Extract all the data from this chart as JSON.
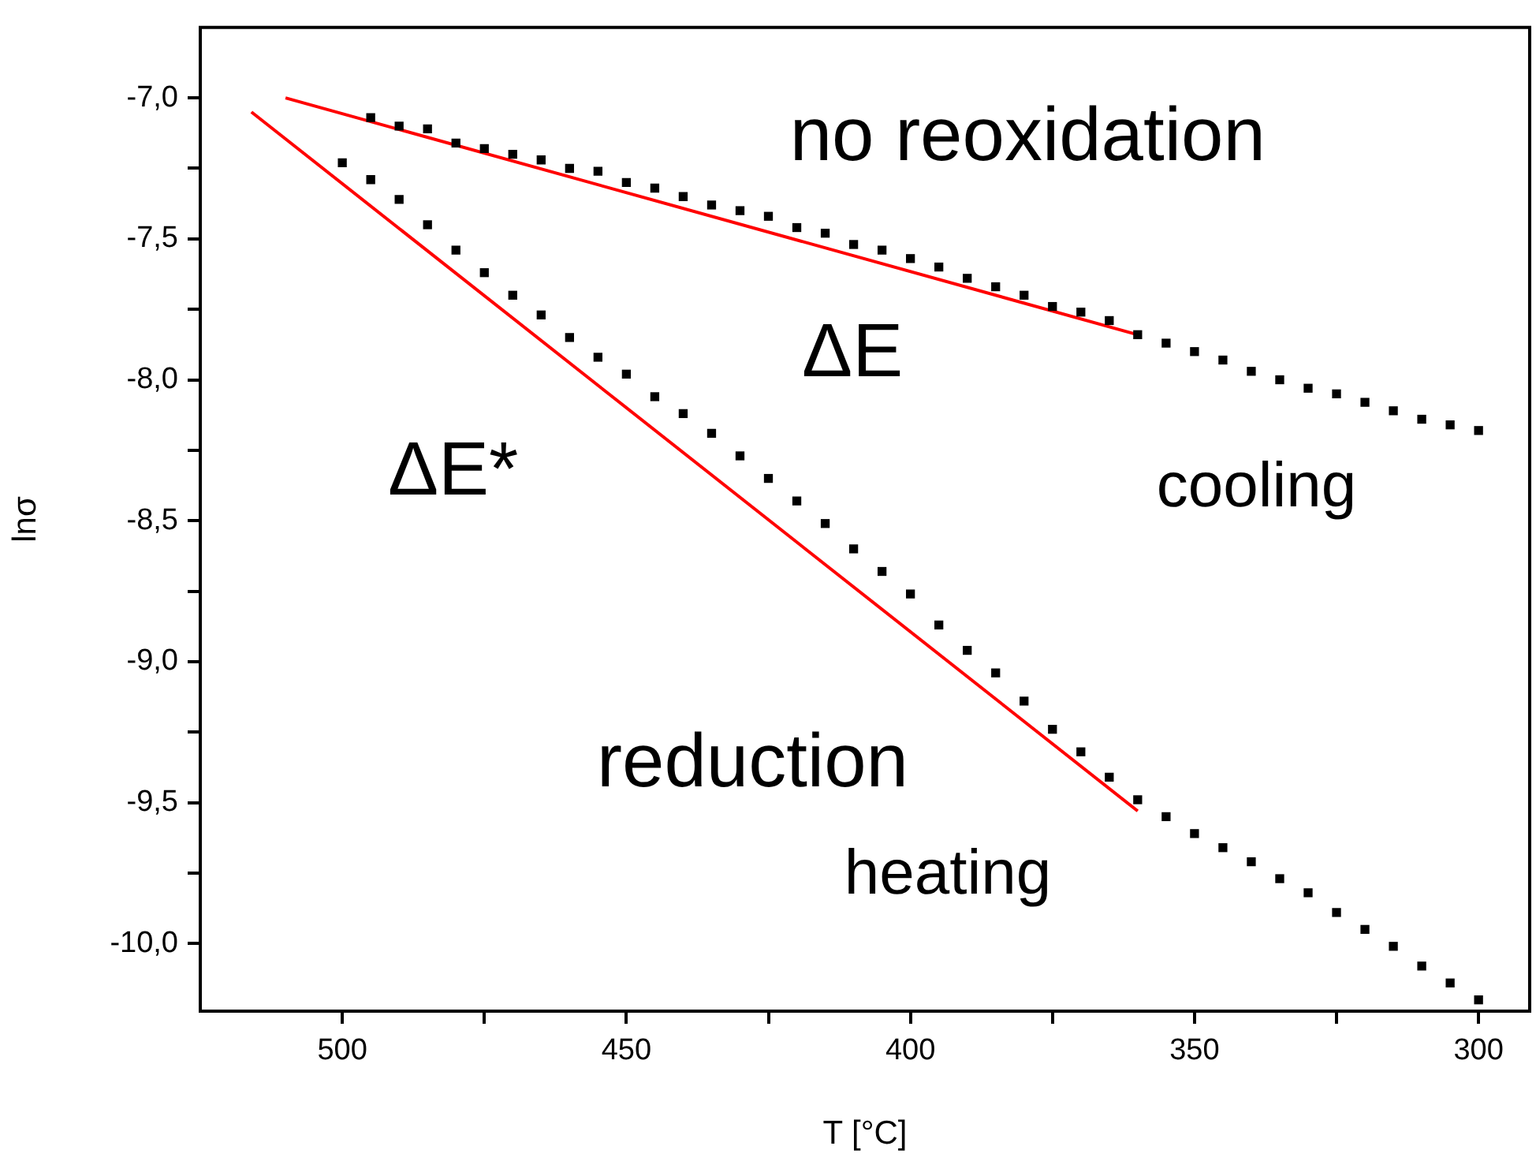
{
  "chart_data": {
    "type": "scatter",
    "xlabel": "T [°C]",
    "ylabel": "lnσ",
    "legend": false,
    "grid": false,
    "xlim": [
      525,
      291
    ],
    "ylim": [
      -10.24,
      -6.75
    ],
    "xticks": [
      500,
      {
        "value": 475,
        "label": null
      },
      450,
      {
        "value": 425,
        "label": null
      },
      400,
      {
        "value": 375,
        "label": null
      },
      350,
      {
        "value": 325,
        "label": null
      },
      300
    ],
    "yticks": [
      {
        "value": -7.0,
        "label": "-7,0"
      },
      {
        "value": -7.25,
        "label": null
      },
      {
        "value": -7.5,
        "label": "-7,5"
      },
      {
        "value": -7.75,
        "label": null
      },
      {
        "value": -8.0,
        "label": "-8,0"
      },
      {
        "value": -8.25,
        "label": null
      },
      {
        "value": -8.5,
        "label": "-8,5"
      },
      {
        "value": -8.75,
        "label": null
      },
      {
        "value": -9.0,
        "label": "-9,0"
      },
      {
        "value": -9.25,
        "label": null
      },
      {
        "value": -9.5,
        "label": "-9,5"
      },
      {
        "value": -9.75,
        "label": null
      },
      {
        "value": -10.0,
        "label": "-10,0"
      }
    ],
    "marker": "square",
    "series": [
      {
        "color": "#000000",
        "x": [
          495,
          490,
          485,
          480,
          475,
          470,
          465,
          460,
          455,
          450,
          445,
          440,
          435,
          430,
          425,
          420,
          415,
          410,
          405,
          400,
          395,
          390,
          385,
          380,
          375,
          370,
          365,
          360,
          355,
          350,
          345,
          340,
          335,
          330,
          325,
          320,
          315,
          310,
          305,
          300
        ],
        "values": [
          -7.07,
          -7.1,
          -7.11,
          -7.16,
          -7.18,
          -7.2,
          -7.22,
          -7.25,
          -7.26,
          -7.3,
          -7.32,
          -7.35,
          -7.38,
          -7.4,
          -7.42,
          -7.46,
          -7.48,
          -7.52,
          -7.54,
          -7.57,
          -7.6,
          -7.64,
          -7.67,
          -7.7,
          -7.74,
          -7.76,
          -7.79,
          -7.84,
          -7.87,
          -7.9,
          -7.93,
          -7.97,
          -8.0,
          -8.03,
          -8.05,
          -8.08,
          -8.11,
          -8.14,
          -8.16,
          -8.18
        ]
      },
      {
        "color": "#000000",
        "x": [
          500,
          495,
          490,
          485,
          480,
          475,
          470,
          465,
          460,
          455,
          450,
          445,
          440,
          435,
          430,
          425,
          420,
          415,
          410,
          405,
          400,
          395,
          390,
          385,
          380,
          375,
          370,
          365,
          360,
          355,
          350,
          345,
          340,
          335,
          330,
          325,
          320,
          315,
          310,
          305,
          300
        ],
        "values": [
          -7.23,
          -7.29,
          -7.36,
          -7.45,
          -7.54,
          -7.62,
          -7.7,
          -7.77,
          -7.85,
          -7.92,
          -7.98,
          -8.06,
          -8.12,
          -8.19,
          -8.27,
          -8.35,
          -8.43,
          -8.51,
          -8.6,
          -8.68,
          -8.76,
          -8.87,
          -8.96,
          -9.04,
          -9.14,
          -9.24,
          -9.32,
          -9.41,
          -9.49,
          -9.55,
          -9.61,
          -9.66,
          -9.71,
          -9.77,
          -9.82,
          -9.89,
          -9.95,
          -10.01,
          -10.08,
          -10.14,
          -10.2
        ]
      },
      {
        "type": "line",
        "marker": "none",
        "line_style": "solid",
        "color": "#ff0000",
        "x": [
          510,
          360
        ],
        "values": [
          -7.0,
          -7.84
        ]
      },
      {
        "type": "line",
        "marker": "none",
        "line_style": "solid",
        "color": "#ff0000",
        "x": [
          516,
          360
        ],
        "values": [
          -7.05,
          -9.53
        ]
      }
    ],
    "annotations": [
      "no reoxidation",
      "ΔE",
      "ΔE*",
      "cooling",
      "reduction",
      "heating"
    ]
  }
}
